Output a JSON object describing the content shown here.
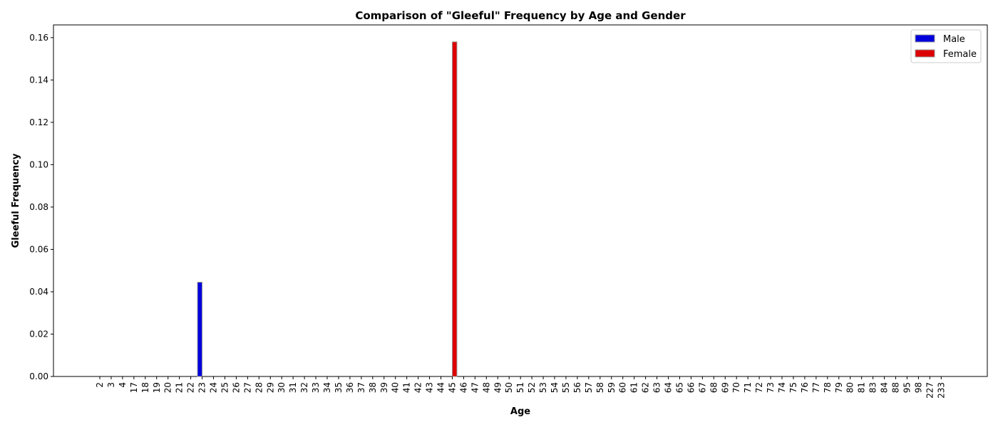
{
  "chart_data": {
    "type": "bar",
    "title": "Comparison of \"Gleeful\" Frequency by Age and Gender",
    "xlabel": "Age",
    "ylabel": "Gleeful Frequency",
    "ylim": [
      0,
      0.166
    ],
    "yticks": [
      "0.00",
      "0.02",
      "0.04",
      "0.06",
      "0.08",
      "0.10",
      "0.12",
      "0.14",
      "0.16"
    ],
    "legend_position": "top-right",
    "categories": [
      "2",
      "3",
      "4",
      "17",
      "18",
      "19",
      "20",
      "21",
      "22",
      "23",
      "24",
      "25",
      "26",
      "27",
      "28",
      "29",
      "30",
      "31",
      "32",
      "33",
      "34",
      "35",
      "36",
      "37",
      "38",
      "39",
      "40",
      "41",
      "42",
      "43",
      "44",
      "45",
      "46",
      "47",
      "48",
      "49",
      "50",
      "51",
      "52",
      "53",
      "54",
      "55",
      "56",
      "57",
      "58",
      "59",
      "60",
      "61",
      "62",
      "63",
      "64",
      "65",
      "66",
      "67",
      "68",
      "69",
      "70",
      "71",
      "72",
      "73",
      "74",
      "75",
      "76",
      "77",
      "78",
      "79",
      "80",
      "81",
      "83",
      "84",
      "88",
      "95",
      "98",
      "227",
      "233"
    ],
    "series": [
      {
        "name": "Male",
        "color": "#0000dd",
        "values": [
          0,
          0,
          0,
          0,
          0,
          0,
          0,
          0,
          0,
          0.0445,
          0,
          0,
          0,
          0,
          0,
          0,
          0,
          0,
          0,
          0,
          0,
          0,
          0,
          0,
          0,
          0,
          0,
          0,
          0,
          0,
          0,
          0,
          0,
          0,
          0,
          0,
          0,
          0,
          0,
          0,
          0,
          0,
          0,
          0,
          0,
          0,
          0,
          0,
          0,
          0,
          0,
          0,
          0,
          0,
          0,
          0,
          0,
          0,
          0,
          0,
          0,
          0,
          0,
          0,
          0,
          0,
          0,
          0,
          0,
          0,
          0,
          0,
          0,
          0,
          0
        ]
      },
      {
        "name": "Female",
        "color": "#dd0000",
        "values": [
          0,
          0,
          0,
          0,
          0,
          0,
          0,
          0,
          0,
          0,
          0,
          0,
          0,
          0,
          0,
          0,
          0,
          0,
          0,
          0,
          0,
          0,
          0,
          0,
          0,
          0,
          0,
          0,
          0,
          0,
          0,
          0.158,
          0,
          0,
          0,
          0,
          0,
          0,
          0,
          0,
          0,
          0,
          0,
          0,
          0,
          0,
          0,
          0,
          0,
          0,
          0,
          0,
          0,
          0,
          0,
          0,
          0,
          0,
          0,
          0,
          0,
          0,
          0,
          0,
          0,
          0,
          0,
          0,
          0,
          0,
          0,
          0,
          0,
          0,
          0
        ]
      }
    ],
    "grid": false
  }
}
